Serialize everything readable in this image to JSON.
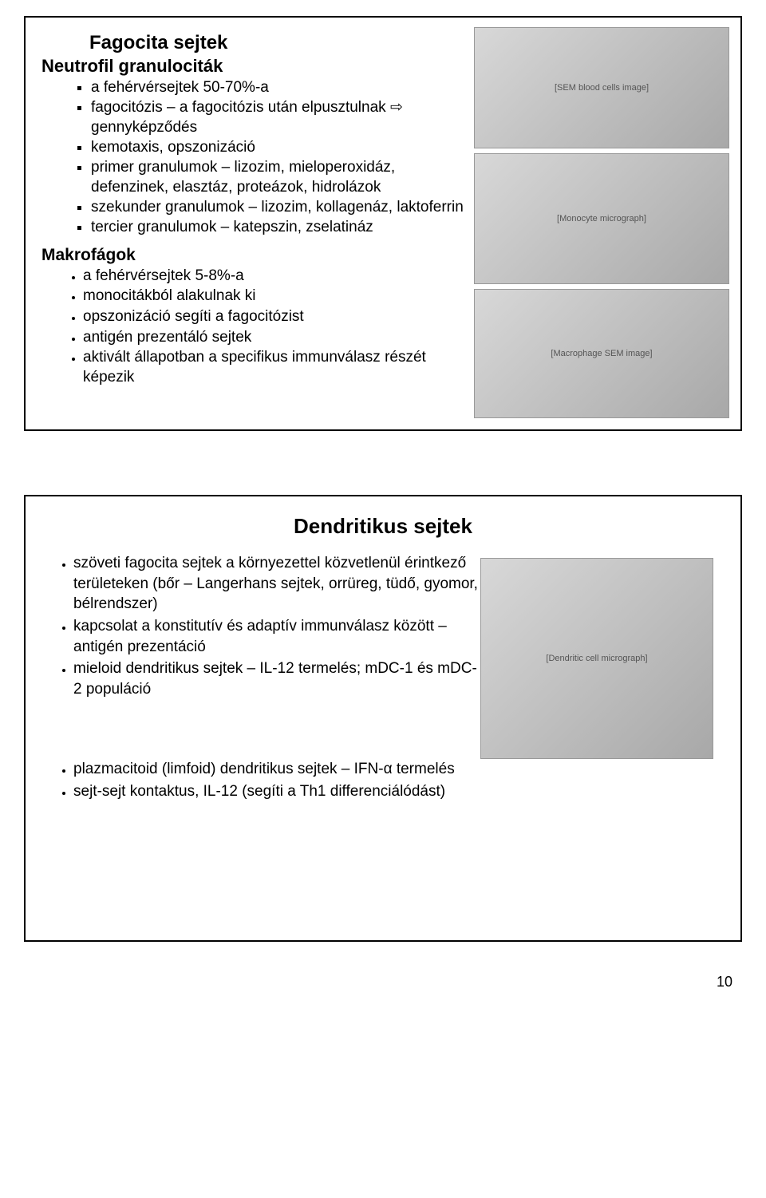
{
  "slide1": {
    "title": "Fagocita sejtek",
    "section1": {
      "heading": "Neutrofil granulociták",
      "items": [
        "a fehérvérsejtek 50-70%-a",
        "fagocitózis – a fagocitózis után elpusztulnak ⇨ gennyképződés",
        "kemotaxis, opszonizáció",
        "primer granulumok – lizozim, mieloperoxidáz, defenzinek, elasztáz, proteázok, hidrolázok",
        "szekunder granulumok – lizozim, kollagenáz, laktoferrin",
        "tercier granulumok – katepszin, zselatináz"
      ]
    },
    "section2": {
      "heading": "Makrofágok",
      "items": [
        "a fehérvérsejtek 5-8%-a",
        "monocitákból alakulnak ki",
        "opszonizáció segíti a fagocitózist",
        "antigén prezentáló sejtek",
        "aktivált állapotban a specifikus immunválasz részét képezik"
      ]
    },
    "images": {
      "img1_alt": "[SEM blood cells image]",
      "img2_alt": "[Monocyte micrograph]",
      "img3_alt": "[Macrophage SEM image]"
    }
  },
  "slide2": {
    "title": "Dendritikus sejtek",
    "items_narrow": [
      "szöveti fagocita sejtek a környezettel közvetlenül érintkező területeken (bőr – Langerhans sejtek, orrüreg, tüdő, gyomor, bélrendszer)",
      "kapcsolat a konstitutív és adaptív immunválasz között – antigén prezentáció",
      "mieloid dendritikus sejtek – IL-12 termelés; mDC-1 és mDC-2 populáció"
    ],
    "items_full": [
      "plazmacitoid (limfoid) dendritikus sejtek – IFN-α termelés",
      "sejt-sejt kontaktus, IL-12 (segíti a Th1 differenciálódást)"
    ],
    "image_alt": "[Dendritic cell micrograph]"
  },
  "page_number": "10"
}
